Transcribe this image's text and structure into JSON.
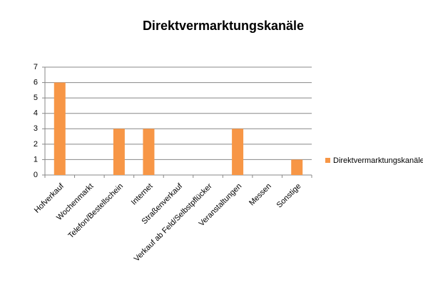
{
  "chart_data": {
    "type": "bar",
    "title": "Direktvermarktungskanäle",
    "categories": [
      "Hofverkauf",
      "Wochenmarkt",
      "Telefon/Bestellschein",
      "Internet",
      "Straßenverkauf",
      "Verkauf ab Feld/Selbstpflücker",
      "Veranstaltungen",
      "Messen",
      "Sonstige"
    ],
    "series": [
      {
        "name": "Direktvermarktungskanäle",
        "color": "#f79646",
        "values": [
          6,
          0,
          3,
          3,
          0,
          0,
          3,
          0,
          1
        ]
      }
    ],
    "ylim": [
      0,
      7
    ],
    "yticks": [
      0,
      1,
      2,
      3,
      4,
      5,
      6,
      7
    ],
    "grid": true,
    "legend": "right"
  }
}
